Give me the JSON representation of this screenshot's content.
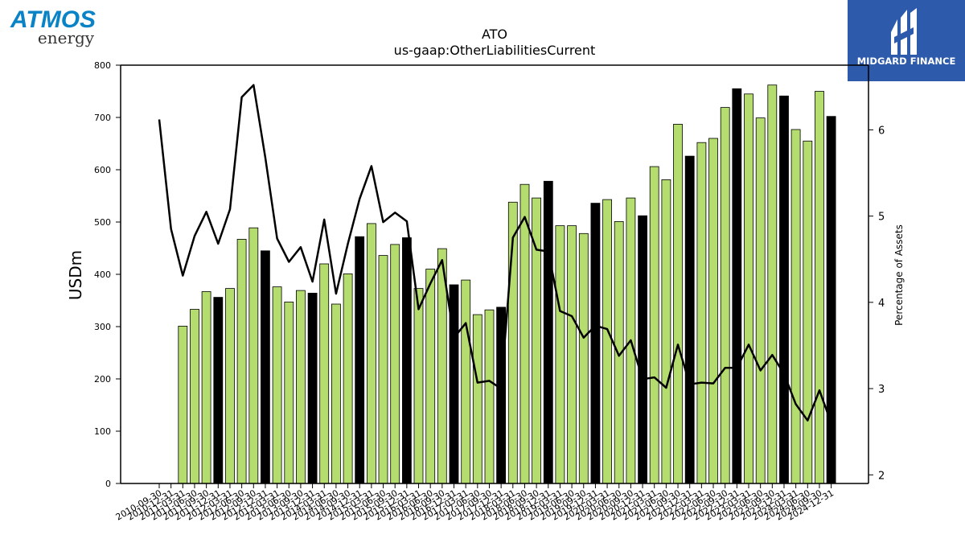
{
  "header": {
    "logo_text_top": "ATMOS",
    "logo_text_bottom": "energy",
    "brand_right": "MIDGARD FINANCE"
  },
  "colors": {
    "bar_green": "#b5dc6e",
    "bar_black": "#000000",
    "line": "#000000",
    "atmos_blue": "#0a82c6",
    "midgard_blue": "#2e5aab"
  },
  "chart_data": {
    "type": "bar",
    "title": "ATO",
    "subtitle": "us-gaap:OtherLiabilitiesCurrent",
    "ylabel": "USDm",
    "y2label": "Percentage of Assets",
    "ylim": [
      0,
      800
    ],
    "y2lim": [
      1.9,
      6.75
    ],
    "yticks": [
      0,
      100,
      200,
      300,
      400,
      500,
      600,
      700,
      800
    ],
    "y2ticks": [
      2,
      3,
      4,
      5,
      6
    ],
    "categories": [
      "2010-09-30",
      "2010-12-31",
      "2011-03-31",
      "2011-06-30",
      "2011-09-30",
      "2011-12-31",
      "2012-03-31",
      "2012-06-30",
      "2012-09-30",
      "2012-12-31",
      "2013-03-31",
      "2013-06-30",
      "2013-09-30",
      "2013-12-31",
      "2014-03-31",
      "2014-06-30",
      "2014-09-30",
      "2014-12-31",
      "2015-03-31",
      "2015-06-30",
      "2015-09-30",
      "2015-12-31",
      "2016-03-31",
      "2016-06-30",
      "2016-09-30",
      "2016-12-31",
      "2017-03-31",
      "2017-06-30",
      "2017-09-30",
      "2017-12-31",
      "2018-03-31",
      "2018-06-30",
      "2018-09-30",
      "2018-12-31",
      "2019-03-31",
      "2019-06-30",
      "2019-09-30",
      "2019-12-31",
      "2020-03-31",
      "2020-06-30",
      "2020-09-30",
      "2020-12-31",
      "2021-03-31",
      "2021-06-30",
      "2021-09-30",
      "2021-12-31",
      "2022-03-31",
      "2022-06-30",
      "2022-09-30",
      "2022-12-31",
      "2023-03-31",
      "2023-06-30",
      "2023-09-30",
      "2023-12-31",
      "2024-03-31",
      "2024-06-30",
      "2024-09-30",
      "2024-12-31"
    ],
    "series": [
      {
        "kind": "bar",
        "values": [
          null,
          null,
          301,
          333,
          367,
          356,
          373,
          467,
          489,
          445,
          376,
          347,
          369,
          364,
          420,
          343,
          401,
          472,
          497,
          436,
          457,
          470,
          373,
          410,
          449,
          380,
          389,
          323,
          332,
          337,
          538,
          572,
          546,
          578,
          493,
          493,
          478,
          536,
          543,
          501,
          546,
          512,
          606,
          581,
          687,
          626,
          652,
          660,
          719,
          755,
          745,
          699,
          762,
          741,
          677,
          655,
          750,
          702
        ],
        "highlight": [
          false,
          false,
          false,
          false,
          false,
          true,
          false,
          false,
          false,
          true,
          false,
          false,
          false,
          true,
          false,
          false,
          false,
          true,
          false,
          false,
          false,
          true,
          false,
          false,
          false,
          true,
          false,
          false,
          false,
          true,
          false,
          false,
          false,
          true,
          false,
          false,
          false,
          true,
          false,
          false,
          false,
          true,
          false,
          false,
          false,
          true,
          false,
          false,
          false,
          true,
          false,
          false,
          false,
          true,
          false,
          false,
          false,
          true
        ]
      },
      {
        "kind": "line",
        "axis": "right",
        "values": [
          6.12,
          4.85,
          4.31,
          4.77,
          5.05,
          4.68,
          5.08,
          6.38,
          6.52,
          5.68,
          4.74,
          4.47,
          4.64,
          4.24,
          4.96,
          4.1,
          4.68,
          5.2,
          5.58,
          4.93,
          5.04,
          4.94,
          3.92,
          4.22,
          4.49,
          3.59,
          3.76,
          3.07,
          3.09,
          3.0,
          4.75,
          4.99,
          4.61,
          4.59,
          3.9,
          3.84,
          3.59,
          3.73,
          3.69,
          3.38,
          3.56,
          3.11,
          3.13,
          3.01,
          3.51,
          3.05,
          3.07,
          3.06,
          3.24,
          3.24,
          3.51,
          3.21,
          3.39,
          3.17,
          2.82,
          2.63,
          2.98,
          2.6
        ]
      }
    ]
  }
}
